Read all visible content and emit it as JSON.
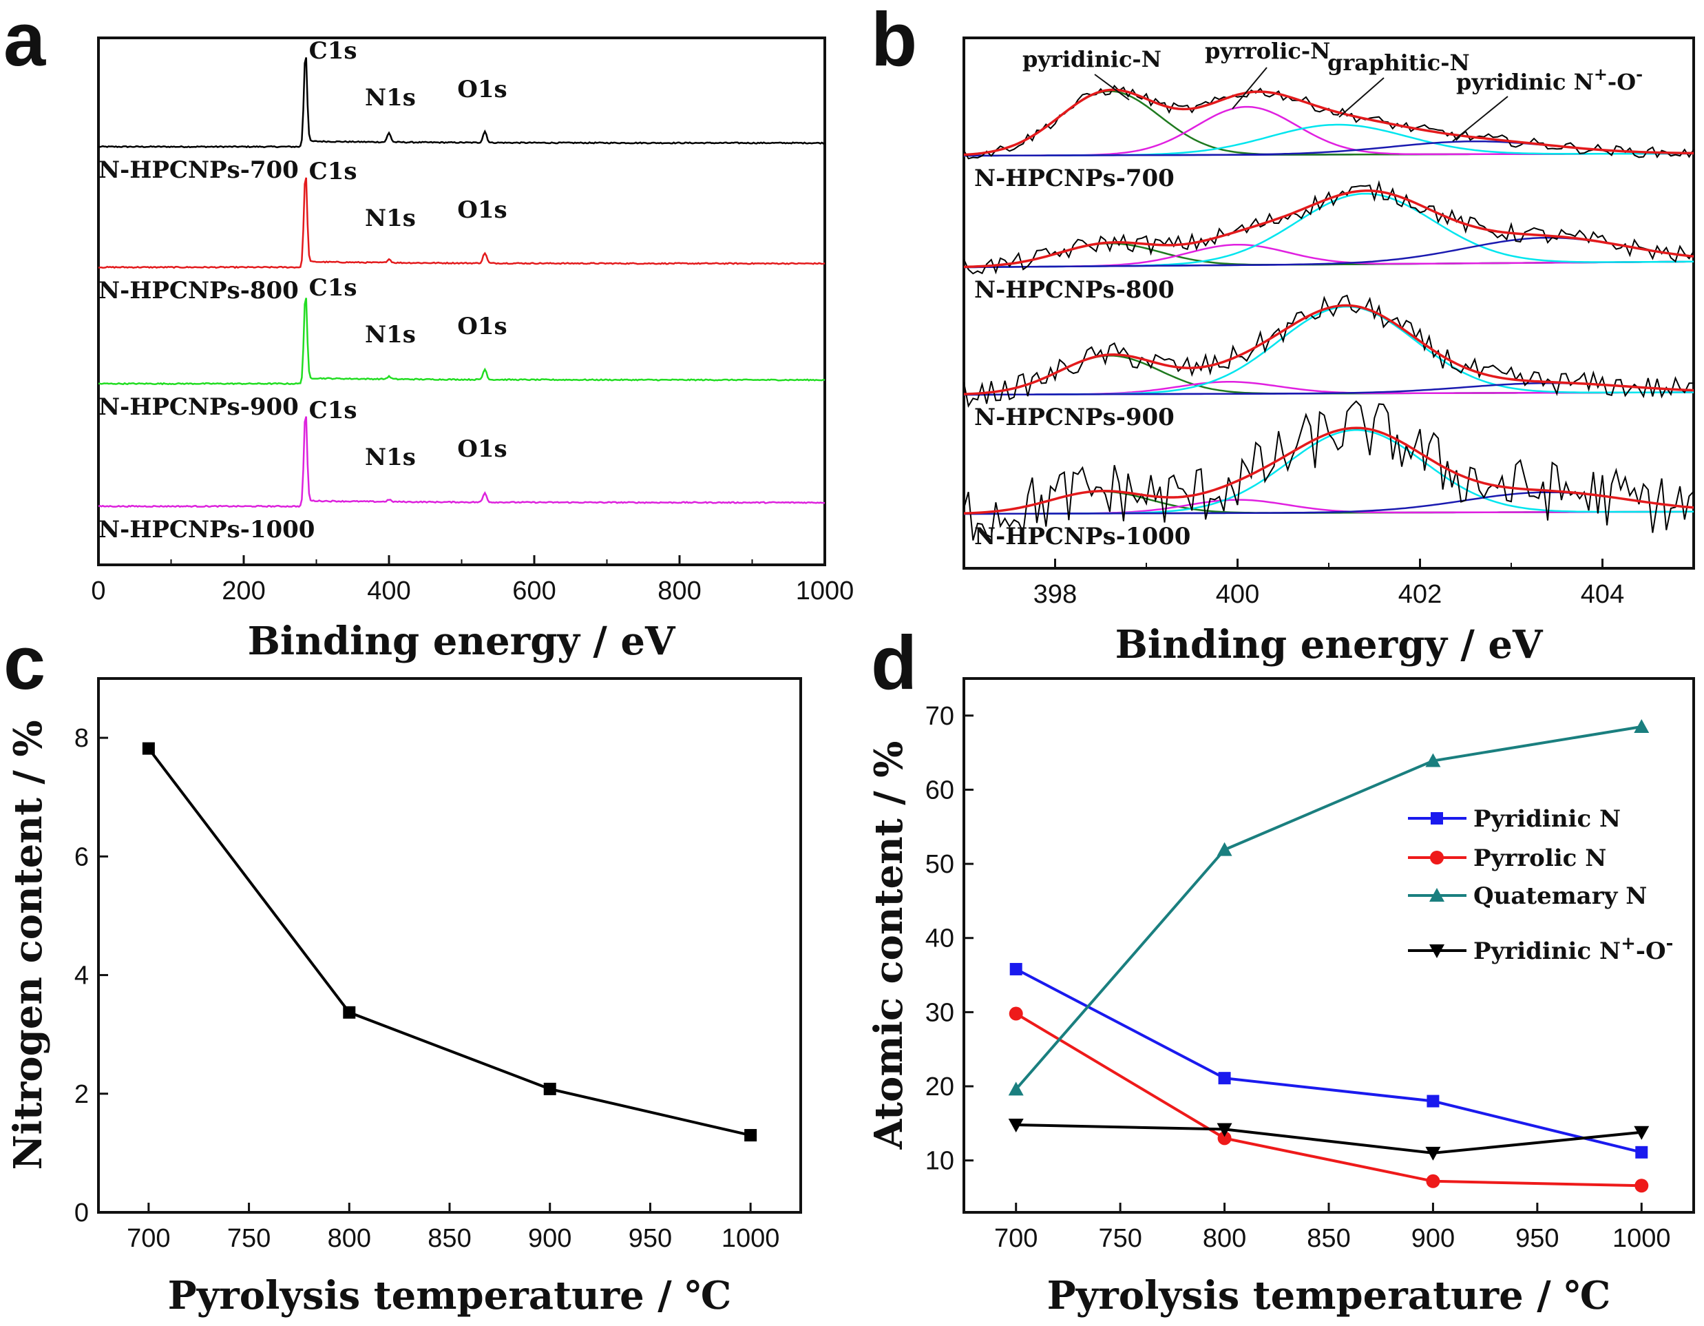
{
  "panels": {
    "a": "a",
    "b": "b",
    "c": "c",
    "d": "d"
  },
  "chart_data": [
    {
      "panel": "a",
      "type": "line",
      "xlabel": "Binding energy / eV",
      "ylabel": "",
      "xlim": [
        0,
        1000
      ],
      "xticks": [
        0,
        200,
        400,
        600,
        800,
        1000
      ],
      "peak_labels": [
        "C1s",
        "N1s",
        "O1s"
      ],
      "peak_positions_eV": {
        "C1s": 285,
        "N1s": 400,
        "O1s": 532
      },
      "series": [
        {
          "name": "N-HPCNPs-700",
          "color": "#000000",
          "c1s": 1.0,
          "n1s": 0.18,
          "o1s": 0.22
        },
        {
          "name": "N-HPCNPs-800",
          "color": "#e31a1c",
          "c1s": 1.0,
          "n1s": 0.07,
          "o1s": 0.2
        },
        {
          "name": "N-HPCNPs-900",
          "color": "#22dd22",
          "c1s": 0.95,
          "n1s": 0.05,
          "o1s": 0.2
        },
        {
          "name": "N-HPCNPs-1000",
          "color": "#dd22dd",
          "c1s": 1.0,
          "n1s": 0.04,
          "o1s": 0.18
        }
      ]
    },
    {
      "panel": "b",
      "type": "line",
      "xlabel": "Binding energy / eV",
      "xlim": [
        397,
        405
      ],
      "xticks": [
        398,
        400,
        402,
        404
      ],
      "annotations": [
        "pyridinic-N",
        "pyrrolic-N",
        "graphitic-N",
        "pyridinic N",
        "+",
        "-O",
        "-"
      ],
      "component_colors": {
        "pyridinic-N": "#1f7a1f",
        "pyrrolic-N": "#e020e0",
        "graphitic-N": "#00e5ee",
        "pyridinic N+-O-": "#1a1ab0",
        "envelope": "#e31a1c",
        "raw": "#000000",
        "baseline": "#1a1ab0"
      },
      "series": [
        {
          "name": "N-HPCNPs-700",
          "peaks": [
            {
              "center": 398.6,
              "height": 0.6
            },
            {
              "center": 400.1,
              "height": 0.45
            },
            {
              "center": 401.1,
              "height": 0.28
            },
            {
              "center": 402.6,
              "height": 0.12
            }
          ],
          "noise": 0.05
        },
        {
          "name": "N-HPCNPs-800",
          "peaks": [
            {
              "center": 398.6,
              "height": 0.2
            },
            {
              "center": 400.0,
              "height": 0.18
            },
            {
              "center": 401.4,
              "height": 0.62
            },
            {
              "center": 403.4,
              "height": 0.22
            }
          ],
          "noise": 0.08
        },
        {
          "name": "N-HPCNPs-900",
          "peaks": [
            {
              "center": 398.6,
              "height": 0.32
            },
            {
              "center": 399.9,
              "height": 0.1
            },
            {
              "center": 401.2,
              "height": 0.72
            },
            {
              "center": 403.4,
              "height": 0.08
            }
          ],
          "noise": 0.1
        },
        {
          "name": "N-HPCNPs-1000",
          "peaks": [
            {
              "center": 398.5,
              "height": 0.2
            },
            {
              "center": 400.0,
              "height": 0.12
            },
            {
              "center": 401.3,
              "height": 0.75
            },
            {
              "center": 403.4,
              "height": 0.18
            }
          ],
          "noise": 0.28
        }
      ]
    },
    {
      "panel": "c",
      "type": "line",
      "xlabel": "Pyrolysis temperature / ℃",
      "ylabel": "Nitrogen content / %",
      "xlim": [
        675,
        1025
      ],
      "ylim": [
        0,
        9
      ],
      "xticks": [
        700,
        750,
        800,
        850,
        900,
        950,
        1000
      ],
      "yticks": [
        0,
        2,
        4,
        6,
        8
      ],
      "x": [
        700,
        800,
        900,
        1000
      ],
      "series": [
        {
          "values": [
            7.82,
            3.37,
            2.08,
            1.3
          ],
          "color": "#000000",
          "marker": "square"
        }
      ]
    },
    {
      "panel": "d",
      "type": "line",
      "xlabel": "Pyrolysis temperature / ℃",
      "ylabel": "Atomic content / %",
      "xlim": [
        675,
        1025
      ],
      "ylim": [
        3,
        75
      ],
      "xticks": [
        700,
        750,
        800,
        850,
        900,
        950,
        1000
      ],
      "yticks": [
        10,
        20,
        30,
        40,
        50,
        60,
        70
      ],
      "legend": "right",
      "x": [
        700,
        800,
        900,
        1000
      ],
      "series": [
        {
          "name": "Pyridinic N",
          "values": [
            35.8,
            21.1,
            18.0,
            11.1
          ],
          "color": "#1a1aee",
          "marker": "square"
        },
        {
          "name": "Pyrrolic N",
          "values": [
            29.8,
            13.0,
            7.2,
            6.6
          ],
          "color": "#ee1a1a",
          "marker": "circle"
        },
        {
          "name": "Quatemary N",
          "values": [
            19.6,
            51.9,
            63.9,
            68.5
          ],
          "color": "#1a7f7f",
          "marker": "triangle-up"
        },
        {
          "name": "Pyridinic N",
          "sup1": "+",
          "mid": "-O",
          "sup2": "-",
          "values": [
            14.8,
            14.2,
            11.0,
            13.8
          ],
          "color": "#000000",
          "marker": "triangle-down"
        }
      ]
    }
  ]
}
